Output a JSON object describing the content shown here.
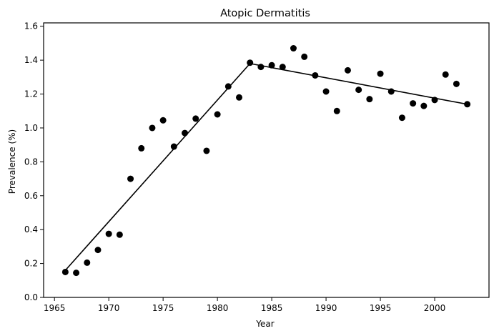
{
  "chart_data": {
    "type": "scatter",
    "title": "Atopic Dermatitis",
    "xlabel": "Year",
    "ylabel": "Prevalence (%)",
    "xlim": [
      1964,
      2005
    ],
    "ylim": [
      0,
      1.62
    ],
    "grid": false,
    "x_ticks": [
      1965,
      1970,
      1975,
      1980,
      1985,
      1990,
      1995,
      2000
    ],
    "y_ticks": [
      0.0,
      0.2,
      0.4,
      0.6,
      0.8,
      1.0,
      1.2,
      1.4,
      1.6
    ],
    "y_tick_labels": [
      "0.0",
      "0.2",
      "0.4",
      "0.6",
      "0.8",
      "1.0",
      "1.2",
      "1.4",
      "1.6"
    ],
    "points": {
      "color": "#000000",
      "x": [
        1966,
        1967,
        1968,
        1969,
        1970,
        1971,
        1972,
        1973,
        1974,
        1975,
        1976,
        1977,
        1978,
        1979,
        1980,
        1981,
        1982,
        1983,
        1984,
        1985,
        1986,
        1987,
        1988,
        1989,
        1990,
        1991,
        1992,
        1993,
        1994,
        1995,
        1996,
        1997,
        1998,
        1999,
        2000,
        2001,
        2002,
        2003
      ],
      "y": [
        0.15,
        0.145,
        0.205,
        0.28,
        0.375,
        0.37,
        0.7,
        0.88,
        1.0,
        1.045,
        0.89,
        0.97,
        1.055,
        0.865,
        1.08,
        1.245,
        1.18,
        1.385,
        1.36,
        1.37,
        1.36,
        1.47,
        1.42,
        1.31,
        1.215,
        1.1,
        1.34,
        1.225,
        1.17,
        1.32,
        1.215,
        1.06,
        1.145,
        1.13,
        1.165,
        1.315,
        1.26,
        1.14
      ]
    },
    "fit_line": {
      "color": "#000000",
      "x": [
        1966,
        1983,
        2003
      ],
      "y": [
        0.16,
        1.38,
        1.14
      ]
    }
  }
}
